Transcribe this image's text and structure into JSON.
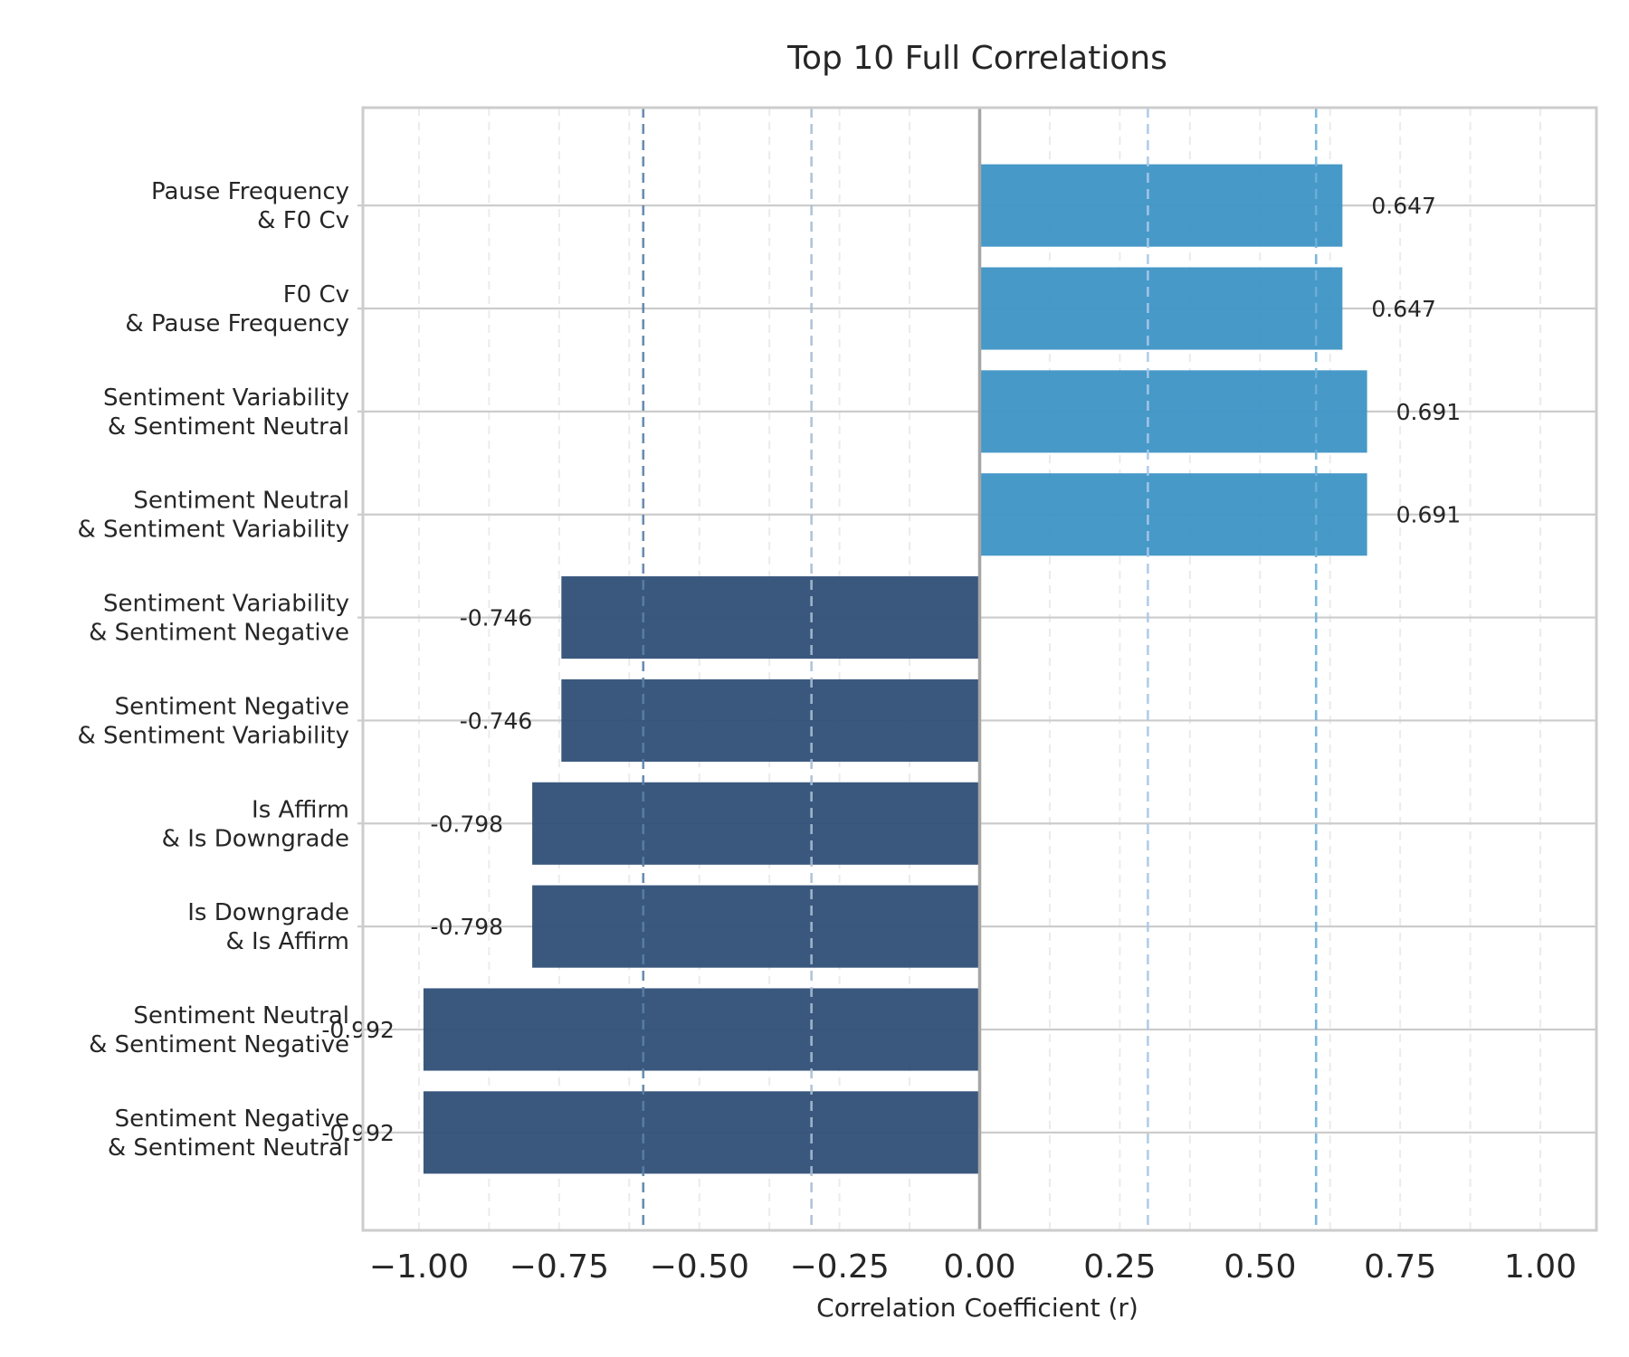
{
  "chart_data": {
    "type": "bar",
    "orientation": "horizontal",
    "title": "Top 10 Full Correlations",
    "xlabel": "Correlation Coefficient (r)",
    "ylabel": "",
    "xlim": [
      -1.1,
      1.1
    ],
    "xticks": [
      -1.0,
      -0.75,
      -0.5,
      -0.25,
      0.0,
      0.25,
      0.5,
      0.75,
      1.0
    ],
    "xtick_labels": [
      "−1.00",
      "−0.75",
      "−0.50",
      "−0.25",
      "0.00",
      "0.25",
      "0.50",
      "0.75",
      "1.00"
    ],
    "grid": true,
    "reference_lines": [
      {
        "x": 0.0,
        "style": "solid",
        "color": "#a6a6a6"
      },
      {
        "x": -0.6,
        "style": "dashed",
        "color": "#5b7fa6"
      },
      {
        "x": -0.3,
        "style": "dashed",
        "color": "#a9bed4"
      },
      {
        "x": 0.3,
        "style": "dashed",
        "color": "#a8c8e8"
      },
      {
        "x": 0.6,
        "style": "dashed",
        "color": "#6eb0d9"
      }
    ],
    "colors": {
      "positive": "#3d93c5",
      "negative": "#2f4f77"
    },
    "categories": [
      [
        "Pause Frequency",
        "& F0 Cv"
      ],
      [
        "F0 Cv",
        "& Pause Frequency"
      ],
      [
        "Sentiment Variability",
        "& Sentiment Neutral"
      ],
      [
        "Sentiment Neutral",
        "& Sentiment Variability"
      ],
      [
        "Sentiment Variability",
        "& Sentiment Negative"
      ],
      [
        "Sentiment Negative",
        "& Sentiment Variability"
      ],
      [
        "Is Affirm",
        "& Is Downgrade"
      ],
      [
        "Is Downgrade",
        "& Is Affirm"
      ],
      [
        "Sentiment Neutral",
        "& Sentiment Negative"
      ],
      [
        "Sentiment Negative",
        "& Sentiment Neutral"
      ]
    ],
    "values": [
      0.647,
      0.647,
      0.691,
      0.691,
      -0.746,
      -0.746,
      -0.798,
      -0.798,
      -0.992,
      -0.992
    ],
    "value_labels": [
      "0.647",
      "0.647",
      "0.691",
      "0.691",
      "-0.746",
      "-0.746",
      "-0.798",
      "-0.798",
      "-0.992",
      "-0.992"
    ]
  }
}
